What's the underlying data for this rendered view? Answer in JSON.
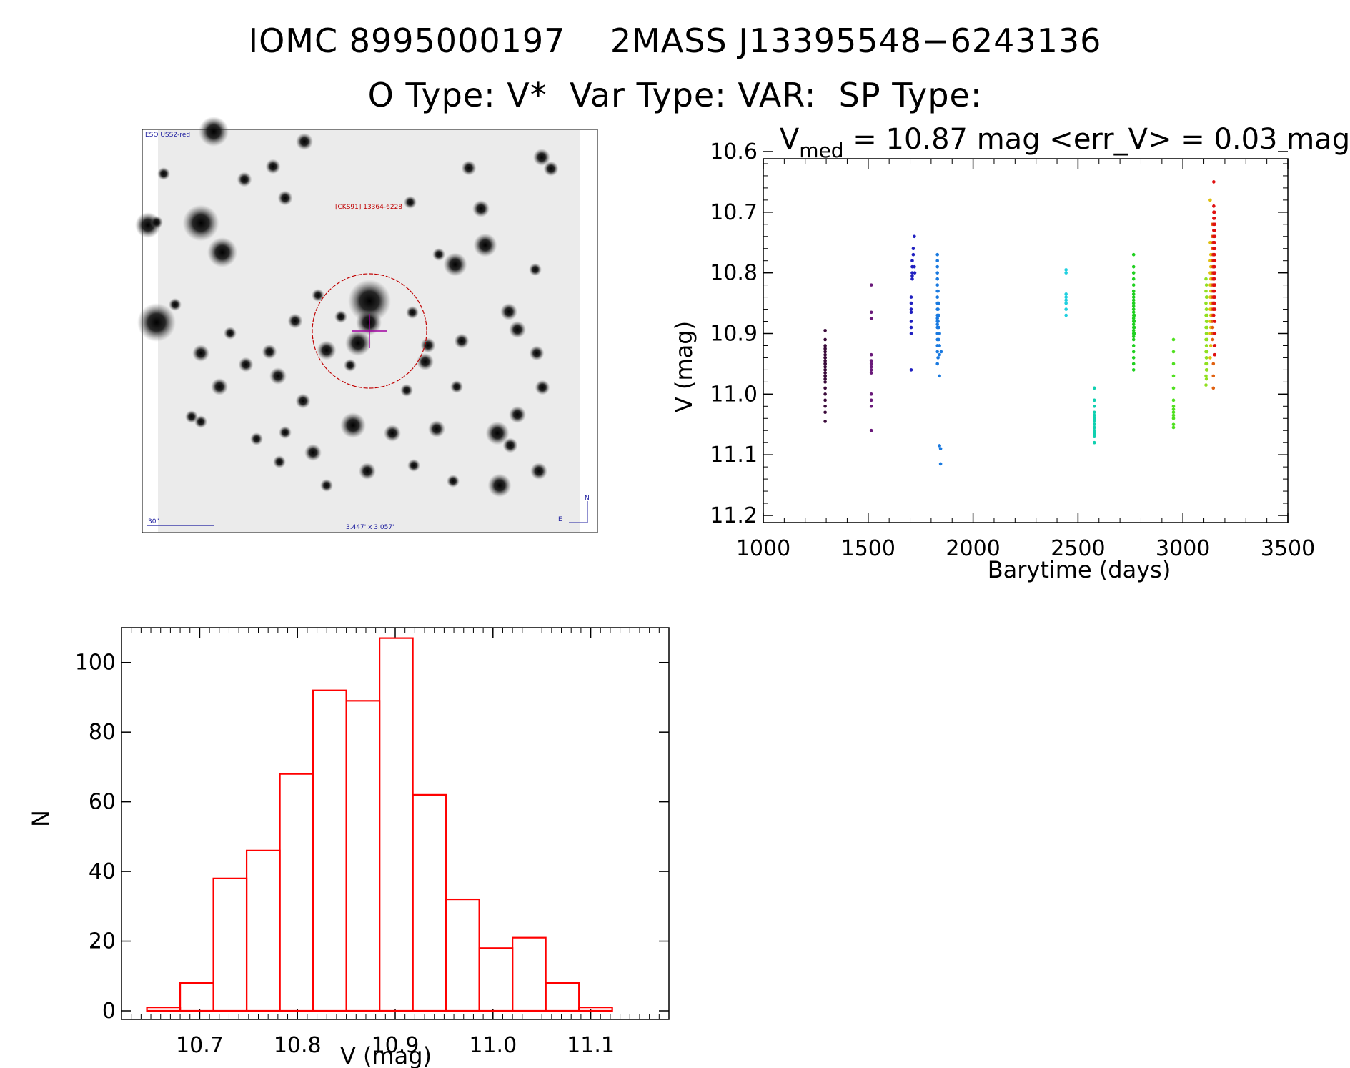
{
  "header": {
    "title_line1": "IOMC 8995000197    2MASS J13395548−6243136",
    "title_line2": "O Type: V*  Var Type: VAR:  SP Type:"
  },
  "finder": {
    "survey_label": "ESO USS2-red",
    "object_label": "[CKS91] 13364-6228",
    "scale_label": "30\"",
    "fov_label": "3.447' x 3.057'",
    "compass_n": "N",
    "compass_e": "E",
    "colors": {
      "circle": "#c00000",
      "cross": "#a000a0",
      "annotation": "#2020a0"
    }
  },
  "chart_data": [
    {
      "type": "scatter",
      "title_prefix": "V",
      "title_sub": "med",
      "title_rest": " = 10.87 mag <err_V> = 0.03 mag",
      "xlabel": "Barytime (days)",
      "ylabel": "V (mag)",
      "xlim": [
        1000,
        3500
      ],
      "ylim": [
        11.2,
        10.6
      ],
      "y_inverted": true,
      "xticks": [
        1000,
        1500,
        2000,
        2500,
        3000,
        3500
      ],
      "yticks": [
        10.6,
        10.7,
        10.8,
        10.9,
        11.0,
        11.1,
        11.2
      ],
      "ytick_labels": [
        "10.6",
        "10.7",
        "10.8",
        "10.9",
        "11.0",
        "11.1",
        "11.2"
      ],
      "series": [
        {
          "color": "#3a0a3a",
          "x": [
            1295,
            1295,
            1295,
            1295,
            1295,
            1295,
            1295,
            1295,
            1295,
            1295,
            1295,
            1295,
            1295,
            1295,
            1295,
            1295,
            1295,
            1295,
            1295,
            1295,
            1295,
            1295,
            1295,
            1295,
            1295
          ],
          "y": [
            10.895,
            10.91,
            10.92,
            10.925,
            10.93,
            10.935,
            10.94,
            10.945,
            10.95,
            10.955,
            10.96,
            10.965,
            10.97,
            10.975,
            10.98,
            10.99,
            11.0,
            11.01,
            11.02,
            11.03,
            11.045,
            10.94,
            10.96,
            10.95,
            10.97
          ]
        },
        {
          "color": "#6a1a7a",
          "x": [
            1515,
            1515,
            1515,
            1515,
            1515,
            1515,
            1515,
            1515,
            1515,
            1515,
            1515,
            1515,
            1515,
            1515
          ],
          "y": [
            10.82,
            10.865,
            10.875,
            10.935,
            10.945,
            10.95,
            10.955,
            10.96,
            10.965,
            11.0,
            11.01,
            11.02,
            11.06,
            10.945
          ]
        },
        {
          "color": "#2020c0",
          "x": [
            1705,
            1705,
            1705,
            1705,
            1705,
            1705,
            1705,
            1705,
            1710,
            1710,
            1710,
            1710,
            1710,
            1715,
            1715,
            1720,
            1720,
            1722
          ],
          "y": [
            10.84,
            10.85,
            10.86,
            10.865,
            10.88,
            10.89,
            10.9,
            10.96,
            10.78,
            10.79,
            10.8,
            10.805,
            10.81,
            10.77,
            10.76,
            10.74,
            10.79,
            10.8
          ]
        },
        {
          "color": "#1a7ae0",
          "x": [
            1830,
            1830,
            1830,
            1830,
            1830,
            1830,
            1830,
            1830,
            1830,
            1830,
            1830,
            1830,
            1830,
            1830,
            1830,
            1830,
            1830,
            1830,
            1830,
            1830,
            1833,
            1833,
            1833,
            1833,
            1833,
            1836,
            1836,
            1836,
            1836,
            1840,
            1840,
            1840,
            1840,
            1840,
            1845,
            1845,
            1848
          ],
          "y": [
            10.77,
            10.78,
            10.79,
            10.8,
            10.81,
            10.82,
            10.83,
            10.84,
            10.85,
            10.86,
            10.87,
            10.875,
            10.88,
            10.885,
            10.89,
            10.9,
            10.91,
            10.92,
            10.93,
            10.95,
            10.83,
            10.86,
            10.88,
            10.9,
            10.94,
            10.85,
            10.87,
            10.89,
            10.91,
            10.9,
            10.92,
            10.935,
            10.97,
            11.085,
            11.09,
            11.115,
            10.93
          ]
        },
        {
          "color": "#20d0e0",
          "x": [
            2443,
            2443,
            2443,
            2443,
            2443,
            2443,
            2443,
            2443
          ],
          "y": [
            10.795,
            10.8,
            10.84,
            10.85,
            10.86,
            10.87,
            10.835,
            10.845
          ]
        },
        {
          "color": "#10d0b0",
          "x": [
            2578,
            2578,
            2578,
            2578,
            2578,
            2578,
            2578,
            2578,
            2578,
            2578,
            2578,
            2578,
            2578
          ],
          "y": [
            10.99,
            11.01,
            11.02,
            11.03,
            11.035,
            11.04,
            11.045,
            11.05,
            11.055,
            11.06,
            11.065,
            11.07,
            11.08
          ]
        },
        {
          "color": "#20d020",
          "x": [
            2765,
            2765,
            2765,
            2765,
            2765,
            2765,
            2765,
            2765,
            2765,
            2765,
            2765,
            2765,
            2765,
            2765,
            2765,
            2765,
            2765,
            2765,
            2765,
            2765,
            2765,
            2765,
            2765,
            2765,
            2765,
            2765,
            2765,
            2765,
            2768,
            2768,
            2768,
            2768
          ],
          "y": [
            10.77,
            10.79,
            10.8,
            10.81,
            10.82,
            10.83,
            10.835,
            10.84,
            10.845,
            10.85,
            10.855,
            10.86,
            10.865,
            10.87,
            10.875,
            10.88,
            10.885,
            10.89,
            10.895,
            10.9,
            10.905,
            10.91,
            10.92,
            10.93,
            10.94,
            10.95,
            10.96,
            10.86,
            10.87,
            10.88,
            10.89,
            10.9
          ]
        },
        {
          "color": "#50e020",
          "x": [
            2955,
            2955,
            2955,
            2955,
            2955,
            2955,
            2955,
            2955,
            2955,
            2955,
            2955,
            2955,
            2955
          ],
          "y": [
            10.91,
            10.93,
            10.95,
            10.97,
            10.99,
            11.01,
            11.02,
            11.025,
            11.03,
            11.035,
            11.04,
            11.05,
            11.055
          ]
        },
        {
          "color": "#90e020",
          "x": [
            3110,
            3110,
            3110,
            3110,
            3110,
            3110,
            3110,
            3110,
            3110,
            3110,
            3112,
            3112,
            3112,
            3112,
            3112,
            3112,
            3112,
            3112,
            3112,
            3112,
            3112,
            3112,
            3115,
            3115,
            3115,
            3115,
            3115,
            3115,
            3115,
            3115
          ],
          "y": [
            10.81,
            10.83,
            10.85,
            10.87,
            10.89,
            10.91,
            10.93,
            10.95,
            10.97,
            10.985,
            10.82,
            10.84,
            10.86,
            10.88,
            10.9,
            10.92,
            10.94,
            10.96,
            10.975,
            10.86,
            10.9,
            10.94,
            10.84,
            10.87,
            10.89,
            10.91,
            10.93,
            10.95,
            10.96,
            10.88
          ]
        },
        {
          "color": "#e0c010",
          "x": [
            3130,
            3130,
            3130,
            3130,
            3130,
            3130,
            3130,
            3130,
            3130,
            3130,
            3133,
            3133,
            3133,
            3133,
            3133,
            3133,
            3133,
            3133,
            3135,
            3135,
            3135,
            3135,
            3135,
            3135,
            3137,
            3137,
            3137,
            3137
          ],
          "y": [
            10.68,
            10.75,
            10.78,
            10.8,
            10.82,
            10.84,
            10.86,
            10.88,
            10.9,
            10.94,
            10.77,
            10.79,
            10.81,
            10.83,
            10.85,
            10.87,
            10.89,
            10.92,
            10.8,
            10.82,
            10.84,
            10.86,
            10.88,
            10.9,
            10.81,
            10.83,
            10.85,
            10.87
          ]
        },
        {
          "color": "#e06010",
          "x": [
            3140,
            3140,
            3140,
            3140,
            3140,
            3140,
            3140,
            3140,
            3140,
            3140,
            3142,
            3142,
            3142,
            3142,
            3142,
            3142,
            3142,
            3142,
            3142,
            3145,
            3145,
            3145,
            3145,
            3145,
            3145
          ],
          "y": [
            10.72,
            10.74,
            10.76,
            10.78,
            10.8,
            10.82,
            10.84,
            10.86,
            10.88,
            10.9,
            10.75,
            10.77,
            10.79,
            10.81,
            10.83,
            10.85,
            10.87,
            10.89,
            10.91,
            10.95,
            10.97,
            10.99,
            10.78,
            10.82,
            10.86
          ]
        },
        {
          "color": "#e01010",
          "x": [
            3147,
            3147,
            3147,
            3147,
            3147,
            3147,
            3147,
            3147,
            3147,
            3147,
            3147,
            3147,
            3147,
            3147,
            3147,
            3147,
            3147,
            3147,
            3147,
            3147,
            3150,
            3150,
            3150,
            3150,
            3150,
            3150,
            3150,
            3150,
            3150,
            3150,
            3150,
            3150,
            3150,
            3150,
            3150,
            3150,
            3152,
            3152,
            3152,
            3152,
            3152,
            3152,
            3152,
            3152,
            3152,
            3152,
            3152,
            3152
          ],
          "y": [
            10.65,
            10.69,
            10.7,
            10.71,
            10.72,
            10.73,
            10.74,
            10.75,
            10.76,
            10.77,
            10.78,
            10.79,
            10.8,
            10.81,
            10.82,
            10.83,
            10.84,
            10.85,
            10.86,
            10.87,
            10.7,
            10.71,
            10.72,
            10.73,
            10.74,
            10.75,
            10.76,
            10.77,
            10.78,
            10.79,
            10.8,
            10.81,
            10.82,
            10.83,
            10.84,
            10.85,
            10.72,
            10.74,
            10.76,
            10.78,
            10.8,
            10.82,
            10.84,
            10.86,
            10.88,
            10.9,
            10.92,
            10.935
          ]
        }
      ]
    },
    {
      "type": "bar",
      "xlabel": "V (mag)",
      "ylabel": "N",
      "xlim": [
        10.62,
        11.18
      ],
      "ylim": [
        0,
        110
      ],
      "xticks": [
        10.7,
        10.8,
        10.9,
        11.0,
        11.1
      ],
      "xtick_labels": [
        "10.7",
        "10.8",
        "10.9",
        "11.0",
        "11.1"
      ],
      "yticks": [
        0,
        20,
        40,
        60,
        80,
        100
      ],
      "bin_edges": [
        10.646,
        10.68,
        10.714,
        10.748,
        10.782,
        10.816,
        10.85,
        10.884,
        10.918,
        10.952,
        10.986,
        11.02,
        11.054,
        11.088,
        11.122
      ],
      "values": [
        1,
        8,
        38,
        46,
        68,
        92,
        89,
        107,
        62,
        32,
        18,
        21,
        8,
        1
      ],
      "color": "#ff0000"
    }
  ]
}
